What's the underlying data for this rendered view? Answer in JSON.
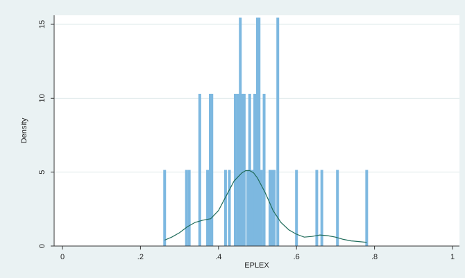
{
  "chart_data": {
    "type": "bar",
    "overlay": "kernel-density-line",
    "xlabel": "EPLEX",
    "ylabel": "Density",
    "xlim": [
      0,
      1
    ],
    "ylim": [
      0,
      15.5
    ],
    "x_ticks": [
      0,
      0.2,
      0.4,
      0.6,
      0.8,
      1
    ],
    "x_tick_labels": [
      "0",
      ".2",
      ".4",
      ".6",
      ".8",
      "1"
    ],
    "y_ticks": [
      0,
      5,
      10,
      15
    ],
    "y_tick_labels": [
      "0",
      "5",
      "10",
      "15"
    ],
    "grid": "horizontal",
    "bar_color": "#7db8e0",
    "line_color": "#1f6b5a",
    "plot_background": "#ffffff",
    "figure_background": "#eaf2f3",
    "histogram": {
      "bin_x": [
        0.262,
        0.318,
        0.325,
        0.352,
        0.372,
        0.379,
        0.383,
        0.418,
        0.428,
        0.443,
        0.45,
        0.456,
        0.462,
        0.466,
        0.475,
        0.48,
        0.486,
        0.49,
        0.493,
        0.5,
        0.504,
        0.51,
        0.517,
        0.532,
        0.538,
        0.543,
        0.552,
        0.6,
        0.652,
        0.665,
        0.705,
        0.78
      ],
      "density": [
        5.15,
        5.15,
        5.15,
        10.3,
        5.15,
        10.3,
        10.3,
        5.15,
        5.15,
        10.3,
        10.3,
        15.45,
        10.3,
        10.3,
        5.15,
        10.3,
        5.15,
        5.15,
        10.3,
        15.45,
        15.45,
        5.15,
        10.3,
        5.15,
        5.15,
        5.15,
        15.45,
        5.15,
        5.15,
        5.15,
        5.15,
        5.15
      ]
    },
    "kde": {
      "x": [
        0.262,
        0.28,
        0.3,
        0.32,
        0.34,
        0.36,
        0.38,
        0.4,
        0.42,
        0.44,
        0.46,
        0.47,
        0.48,
        0.49,
        0.5,
        0.52,
        0.54,
        0.56,
        0.58,
        0.6,
        0.62,
        0.64,
        0.66,
        0.68,
        0.7,
        0.72,
        0.74,
        0.76,
        0.78
      ],
      "y": [
        0.4,
        0.6,
        0.9,
        1.3,
        1.6,
        1.75,
        1.85,
        2.4,
        3.4,
        4.4,
        4.95,
        5.1,
        5.1,
        4.95,
        4.6,
        3.6,
        2.4,
        1.6,
        1.1,
        0.8,
        0.6,
        0.65,
        0.75,
        0.7,
        0.6,
        0.45,
        0.35,
        0.3,
        0.25
      ]
    }
  }
}
